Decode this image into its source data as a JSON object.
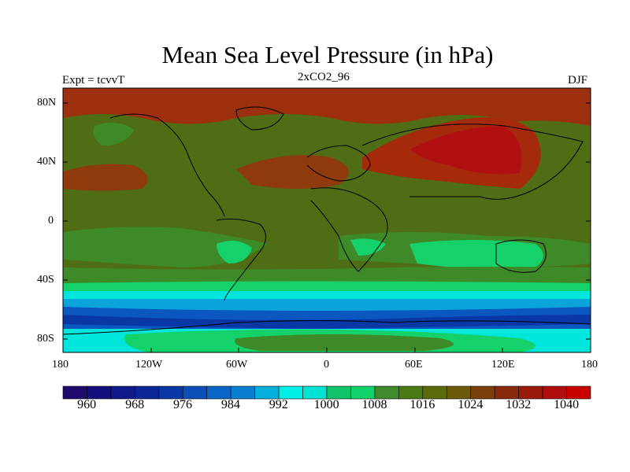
{
  "title": "Mean Sea Level Pressure (in hPa)",
  "left_label": "Expt = tcvvT",
  "center_label": "2xCO2_96",
  "right_label": "DJF",
  "lat_ticks": [
    "80N",
    "40N",
    "0",
    "40S",
    "80S"
  ],
  "lon_ticks": [
    "180",
    "120W",
    "60W",
    "0",
    "60E",
    "120E",
    "180"
  ],
  "colorbar": {
    "labels": [
      "960",
      "968",
      "976",
      "984",
      "992",
      "1000",
      "1008",
      "1016",
      "1024",
      "1032",
      "1040"
    ],
    "colors": [
      "#1f0a6e",
      "#130f7d",
      "#0f1a88",
      "#0a2696",
      "#0a37a6",
      "#0d4fb9",
      "#0a66c6",
      "#0a7fd0",
      "#05b0dc",
      "#00f0e8",
      "#00e3d3",
      "#11c36a",
      "#11d16a",
      "#3f8a2c",
      "#4b7a14",
      "#5b6a0d",
      "#6b5a0a",
      "#7a3f0a",
      "#8a2a0c",
      "#9b1a0c",
      "#b00e0e",
      "#c80000"
    ]
  },
  "map_colors": {
    "ocean_high": "#9c2f0d",
    "mid": "#4f6d15",
    "green": "#3e8a29",
    "bright_green": "#14d16a",
    "cyan": "#00e6dd",
    "light_blue": "#0ba4da",
    "blue": "#0a57c0",
    "deep_red": "#b11010"
  }
}
